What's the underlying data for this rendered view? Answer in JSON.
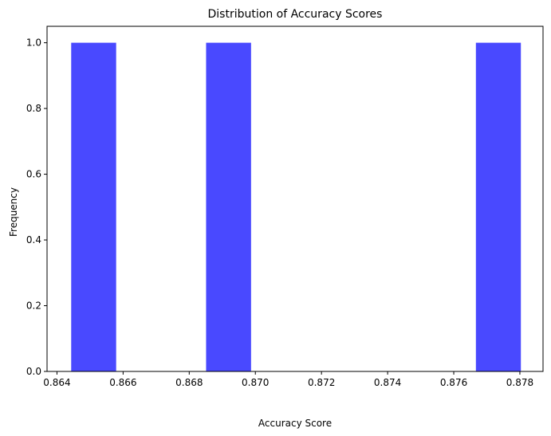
{
  "chart_data": {
    "type": "bar",
    "title": "Distribution of Accuracy Scores",
    "xlabel": "Accuracy Score",
    "ylabel": "Frequency",
    "xlim": [
      0.8637,
      0.8787
    ],
    "ylim": [
      0,
      1.05
    ],
    "xticks": [
      "0.864",
      "0.866",
      "0.868",
      "0.870",
      "0.872",
      "0.874",
      "0.876",
      "0.878"
    ],
    "yticks": [
      "0.0",
      "0.2",
      "0.4",
      "0.6",
      "0.8",
      "1.0"
    ],
    "bins": [
      {
        "x0": 0.86443,
        "x1": 0.86579,
        "count": 1
      },
      {
        "x0": 0.86579,
        "x1": 0.86715,
        "count": 0
      },
      {
        "x0": 0.86715,
        "x1": 0.86851,
        "count": 0
      },
      {
        "x0": 0.86851,
        "x1": 0.86987,
        "count": 1
      },
      {
        "x0": 0.86987,
        "x1": 0.87123,
        "count": 0
      },
      {
        "x0": 0.87123,
        "x1": 0.87259,
        "count": 0
      },
      {
        "x0": 0.87259,
        "x1": 0.87395,
        "count": 0
      },
      {
        "x0": 0.87395,
        "x1": 0.87531,
        "count": 0
      },
      {
        "x0": 0.87531,
        "x1": 0.87667,
        "count": 0
      },
      {
        "x0": 0.87667,
        "x1": 0.87803,
        "count": 1
      }
    ],
    "bar_color": "#4949ff",
    "grid": false,
    "legend": false
  }
}
